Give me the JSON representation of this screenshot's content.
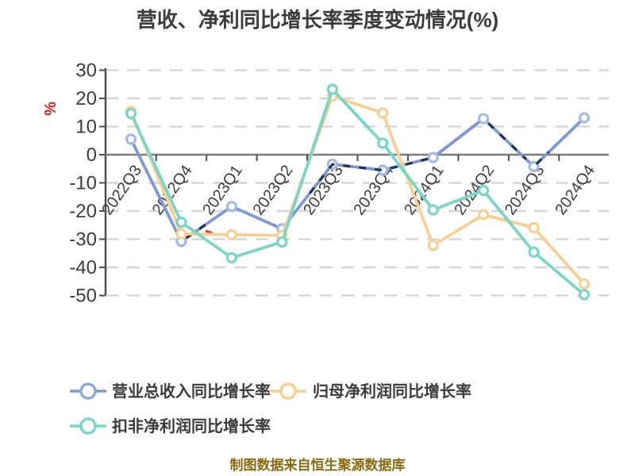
{
  "title": "营收、净利同比增长率季度变动情况(%)",
  "caption": "制图数据来自恒生聚源数据库",
  "chart_data": {
    "type": "line",
    "title": "营收、净利同比增长率季度变动情况(%)",
    "xlabel": "",
    "ylabel": "%",
    "ylabel_color": "#e02020",
    "ylim": [
      -50,
      30
    ],
    "yticks": [
      30,
      20,
      10,
      0,
      -10,
      -20,
      -30,
      -40,
      -50
    ],
    "grid": "horizontal-dashed",
    "legend_position": "bottom-left",
    "categories": [
      "2022Q3",
      "2022Q4",
      "2023Q1",
      "2023Q2",
      "2023Q3",
      "2023Q4",
      "2024Q1",
      "2024Q2",
      "2024Q3",
      "2024Q4"
    ],
    "series": [
      {
        "name": "营业总收入同比增长率",
        "color": "#7e98d1",
        "marker_ring": "#a3bae3",
        "overlay_dash_color": "#1e2f52",
        "values": [
          5.5,
          -30.8,
          -18.4,
          -26.3,
          -3.4,
          -5.5,
          -1.0,
          12.8,
          -4.2,
          13.1
        ]
      },
      {
        "name": "归母净利润同比增长率",
        "color": "#f8cf92",
        "marker_ring": "#f8cf92",
        "values": [
          15.4,
          -28.1,
          -28.4,
          -28.7,
          20.8,
          14.8,
          -32.2,
          -21.3,
          -25.9,
          -45.9
        ]
      },
      {
        "name": "扣非净利润同比增长率",
        "color": "#7bd5c6",
        "marker_ring": "#7bd5c6",
        "values": [
          14.6,
          -24.0,
          -36.6,
          -31.0,
          23.2,
          4.1,
          -19.6,
          -12.7,
          -34.6,
          -49.7
        ]
      }
    ]
  },
  "style_colors": {
    "grid": "#d6d6d6",
    "axis_zero_line": "#7c7c7c",
    "spine": "#4a4a4a",
    "tick": "#4d4d4d",
    "text": "#3c3c3c",
    "title": "#3c3c3c",
    "caption": "#8a690f",
    "percent_label": "#e02020",
    "red_artifact": "#d63425"
  }
}
